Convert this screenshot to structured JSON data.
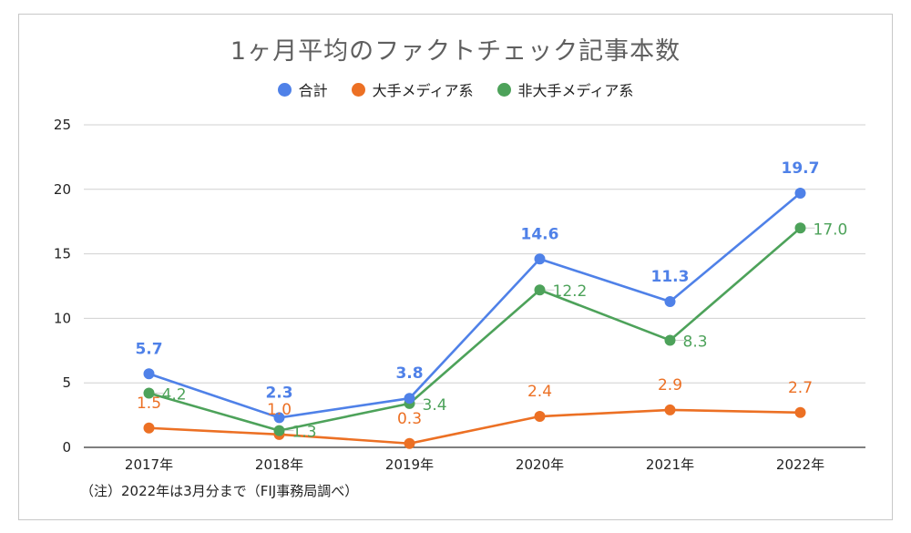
{
  "chart_data": {
    "type": "line",
    "title": "1ヶ月平均のファクトチェック記事本数",
    "categories": [
      "2017年",
      "2018年",
      "2019年",
      "2020年",
      "2021年",
      "2022年"
    ],
    "ylim": [
      0,
      25
    ],
    "yticks": [
      0,
      5,
      10,
      15,
      20,
      25
    ],
    "grid": true,
    "legend_position": "top",
    "series": [
      {
        "name": "合計",
        "color": "#4f81e8",
        "values": [
          5.7,
          2.3,
          3.8,
          14.6,
          11.3,
          19.7
        ],
        "labels": [
          "5.7",
          "2.3",
          "3.8",
          "14.6",
          "11.3",
          "19.7"
        ],
        "label_bold": true
      },
      {
        "name": "大手メディア系",
        "color": "#ec7024",
        "values": [
          1.5,
          1.0,
          0.3,
          2.4,
          2.9,
          2.7
        ],
        "labels": [
          "1.5",
          "1.0",
          "0.3",
          "2.4",
          "2.9",
          "2.7"
        ],
        "label_bold": false
      },
      {
        "name": "非大手メディア系",
        "color": "#4da25a",
        "values": [
          4.2,
          1.3,
          3.4,
          12.2,
          8.3,
          17.0
        ],
        "labels": [
          "4.2",
          "1.3",
          "3.4",
          "12.2",
          "8.3",
          "17.0"
        ],
        "label_bold": false
      }
    ],
    "footnote": "（注）2022年は3月分まで（FIJ事務局調べ）"
  }
}
